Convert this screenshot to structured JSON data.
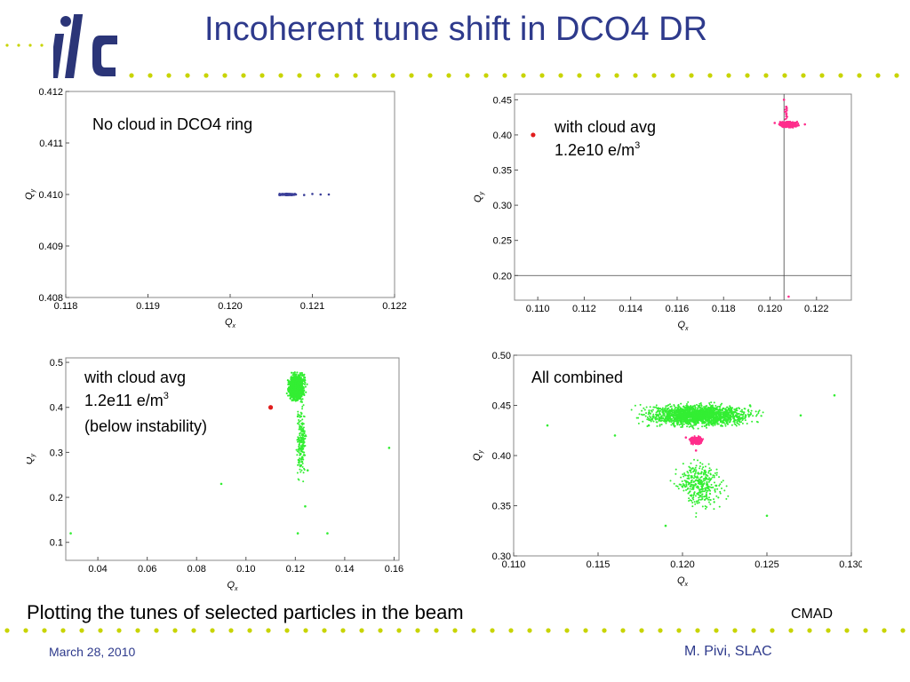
{
  "slide": {
    "title": "Incoherent tune shift in DCO4 DR",
    "caption": "Plotting the tunes of selected particles in the beam",
    "footer_right": "CMAD",
    "date": "March 28, 2010",
    "author": "M. Pivi, SLAC",
    "logo_text": "ilc",
    "colors": {
      "title": "#2e3a8c",
      "dots": "#c8d400",
      "logo": "#2b3578"
    }
  },
  "chart_data": [
    {
      "type": "scatter",
      "annotation": {
        "lines": [
          "No cloud in DCO4 ring"
        ]
      },
      "xlabel": "Q",
      "xlabel_sub": "x",
      "ylabel": "Q",
      "ylabel_sub": "y",
      "xlim": [
        0.118,
        0.122
      ],
      "ylim": [
        0.408,
        0.412
      ],
      "xticks": [
        "0.118",
        "0.119",
        "0.120",
        "0.121",
        "0.122"
      ],
      "yticks": [
        "0.408",
        "0.409",
        "0.410",
        "0.411",
        "0.412"
      ],
      "series": [
        {
          "color": "#3b3f99",
          "points": [
            [
              0.1206,
              0.40999
            ],
            [
              0.1207,
              0.41001
            ],
            [
              0.1208,
              0.41
            ],
            [
              0.1209,
              0.40999
            ],
            [
              0.121,
              0.41001
            ],
            [
              0.1211,
              0.41
            ],
            [
              0.1212,
              0.41
            ]
          ]
        }
      ]
    },
    {
      "type": "scatter",
      "annotation": {
        "lines": [
          "with cloud avg",
          "1.2e10 e/m"
        ],
        "sup": "3"
      },
      "xlabel": "Q",
      "xlabel_sub": "x",
      "ylabel": "Q",
      "ylabel_sub": "y",
      "xlim": [
        0.109,
        0.1235
      ],
      "ylim": [
        0.165,
        0.458
      ],
      "xticks": [
        "0.110",
        "0.112",
        "0.114",
        "0.116",
        "0.118",
        "0.120",
        "0.122"
      ],
      "yticks": [
        "0.20",
        "0.25",
        "0.30",
        "0.35",
        "0.40",
        "0.45"
      ],
      "refline_x": 0.1206,
      "refline_y": 0.2,
      "series": [
        {
          "color": "#ff2d8c",
          "points": [
            [
              0.1204,
              0.415
            ],
            [
              0.1206,
              0.418
            ],
            [
              0.1208,
              0.413
            ],
            [
              0.121,
              0.416
            ],
            [
              0.1212,
              0.414
            ],
            [
              0.1215,
              0.415
            ],
            [
              0.1202,
              0.417
            ],
            [
              0.1207,
              0.44
            ],
            [
              0.1206,
              0.45
            ],
            [
              0.1208,
              0.17
            ]
          ]
        },
        {
          "color": "#e11d1d",
          "points": [
            [
              0.1098,
              0.4
            ]
          ]
        }
      ]
    },
    {
      "type": "scatter",
      "annotation": {
        "lines": [
          "with cloud avg",
          "1.2e11 e/m",
          "(below instability)"
        ],
        "sup": "3"
      },
      "xlabel": "Q",
      "xlabel_sub": "x",
      "ylabel": "Q",
      "ylabel_sub": "y",
      "xlim": [
        0.027,
        0.162
      ],
      "ylim": [
        0.06,
        0.51
      ],
      "xticks": [
        "0.04",
        "0.06",
        "0.08",
        "0.10",
        "0.12",
        "0.14",
        "0.16"
      ],
      "yticks": [
        "0.1",
        "0.2",
        "0.3",
        "0.4",
        "0.5"
      ],
      "series": [
        {
          "color": "#33ee33",
          "points": [
            [
              0.12,
              0.44
            ],
            [
              0.122,
              0.46
            ],
            [
              0.118,
              0.42
            ],
            [
              0.121,
              0.38
            ],
            [
              0.123,
              0.33
            ],
            [
              0.125,
              0.26
            ],
            [
              0.124,
              0.18
            ],
            [
              0.121,
              0.12
            ],
            [
              0.09,
              0.23
            ],
            [
              0.158,
              0.31
            ],
            [
              0.029,
              0.12
            ],
            [
              0.133,
              0.12
            ]
          ]
        },
        {
          "color": "#e11d1d",
          "points": [
            [
              0.11,
              0.4
            ]
          ]
        }
      ]
    },
    {
      "type": "scatter",
      "annotation": {
        "lines": [
          "All combined"
        ]
      },
      "xlabel": "Q",
      "xlabel_sub": "x",
      "ylabel": "Q",
      "ylabel_sub": "y",
      "xlim": [
        0.11,
        0.13
      ],
      "ylim": [
        0.3,
        0.5
      ],
      "xticks": [
        "0.110",
        "0.115",
        "0.120",
        "0.125",
        "0.130"
      ],
      "yticks": [
        "0.30",
        "0.35",
        "0.40",
        "0.45",
        "0.50"
      ],
      "series": [
        {
          "color": "#33ee33",
          "points": [
            [
              0.121,
              0.44
            ],
            [
              0.118,
              0.43
            ],
            [
              0.124,
              0.45
            ],
            [
              0.127,
              0.44
            ],
            [
              0.116,
              0.42
            ],
            [
              0.122,
              0.37
            ],
            [
              0.125,
              0.34
            ],
            [
              0.119,
              0.33
            ],
            [
              0.112,
              0.43
            ],
            [
              0.129,
              0.46
            ]
          ]
        },
        {
          "color": "#ff2d8c",
          "points": [
            [
              0.1206,
              0.416
            ],
            [
              0.121,
              0.414
            ],
            [
              0.1202,
              0.418
            ],
            [
              0.1208,
              0.405
            ]
          ]
        }
      ]
    }
  ]
}
